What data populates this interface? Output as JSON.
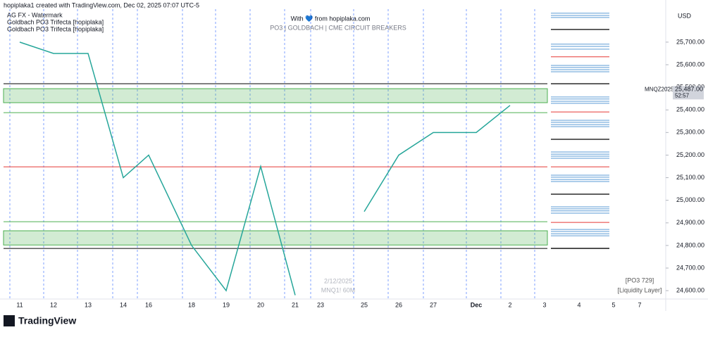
{
  "header": "hopiplaka1 created with TradingView.com, Dec 02, 2025 07:07 UTC-5",
  "indicators": [
    "AG FX - Watermark",
    "Goldbach PO3 Trifecta [hopiplaka]",
    "Goldbach PO3 Trifecta [hopiplaka]"
  ],
  "watermark": {
    "line1": "With 💙 from hopiplaka.com",
    "line2": "PO3 | GOLDBACH | CME CIRCUIT BREAKERS",
    "date": "2/12/2025",
    "symbol": "MNQ1! 60M"
  },
  "notes": [
    "[PO3 729]",
    "[Liquidity Layer]"
  ],
  "currency": "USD",
  "brand": "TradingView",
  "chart_data": {
    "type": "line",
    "categories": [
      "11",
      "12",
      "13",
      "14",
      "16",
      "18",
      "19",
      "20",
      "21",
      "23",
      "25",
      "26",
      "27",
      "Dec",
      "2",
      "3",
      "4",
      "5",
      "7"
    ],
    "series": [
      {
        "name": "MNQZ2025",
        "color": "#26a69a",
        "values": [
          25700,
          25650,
          25650,
          25100,
          25200,
          24800,
          24600,
          25150,
          24580,
          null,
          24950,
          25200,
          25300,
          25300,
          25420,
          null,
          null,
          null,
          null
        ]
      }
    ],
    "last_price": {
      "value": 25487,
      "label": "25,487.00",
      "timer": "52:57"
    },
    "ylim": [
      24563,
      25846
    ],
    "yticks": [
      {
        "value": 25700,
        "label": "25,700.00"
      },
      {
        "value": 25600,
        "label": "25,600.00"
      },
      {
        "value": 25500,
        "label": "25,500.00"
      },
      {
        "value": 25400,
        "label": "25,400.00"
      },
      {
        "value": 25300,
        "label": "25,300.00"
      },
      {
        "value": 25200,
        "label": "25,200.00"
      },
      {
        "value": 25100,
        "label": "25,100.00"
      },
      {
        "value": 25000,
        "label": "25,000.00"
      },
      {
        "value": 24900,
        "label": "24,900.00"
      },
      {
        "value": 24800,
        "label": "24,800.00"
      },
      {
        "value": 24700,
        "label": "24,700.00"
      },
      {
        "value": 24600,
        "label": "24,600.00"
      }
    ],
    "zones": [
      {
        "values": [
          25432,
          25494
        ],
        "color": "#4caf50"
      },
      {
        "values": [
          24802,
          24865
        ],
        "color": "#4caf50"
      }
    ],
    "levels": [
      {
        "color": "#000000",
        "values": [
          25516,
          24787
        ]
      },
      {
        "color": "#4caf50",
        "values": [
          25388,
          24905
        ]
      },
      {
        "color": "#e53935",
        "values": [
          25148
        ]
      }
    ],
    "side_levels": [
      {
        "color": "#5b9bd5",
        "values": [
          25828,
          25818,
          25809,
          25691,
          25681,
          25669,
          25597,
          25588,
          25578,
          25569,
          25457,
          25448,
          25438,
          25429,
          25354,
          25345,
          25335,
          25326,
          25214,
          25204,
          25195,
          25186,
          25111,
          25102,
          25092,
          25083,
          24971,
          24962,
          24953,
          24943,
          24871,
          24862,
          24852,
          24843
        ]
      },
      {
        "color": "#000000",
        "values": [
          25756,
          25516,
          25270,
          25027,
          24787
        ]
      },
      {
        "color": "#e53935",
        "values": [
          25635,
          25391,
          25148,
          24902
        ]
      }
    ]
  }
}
